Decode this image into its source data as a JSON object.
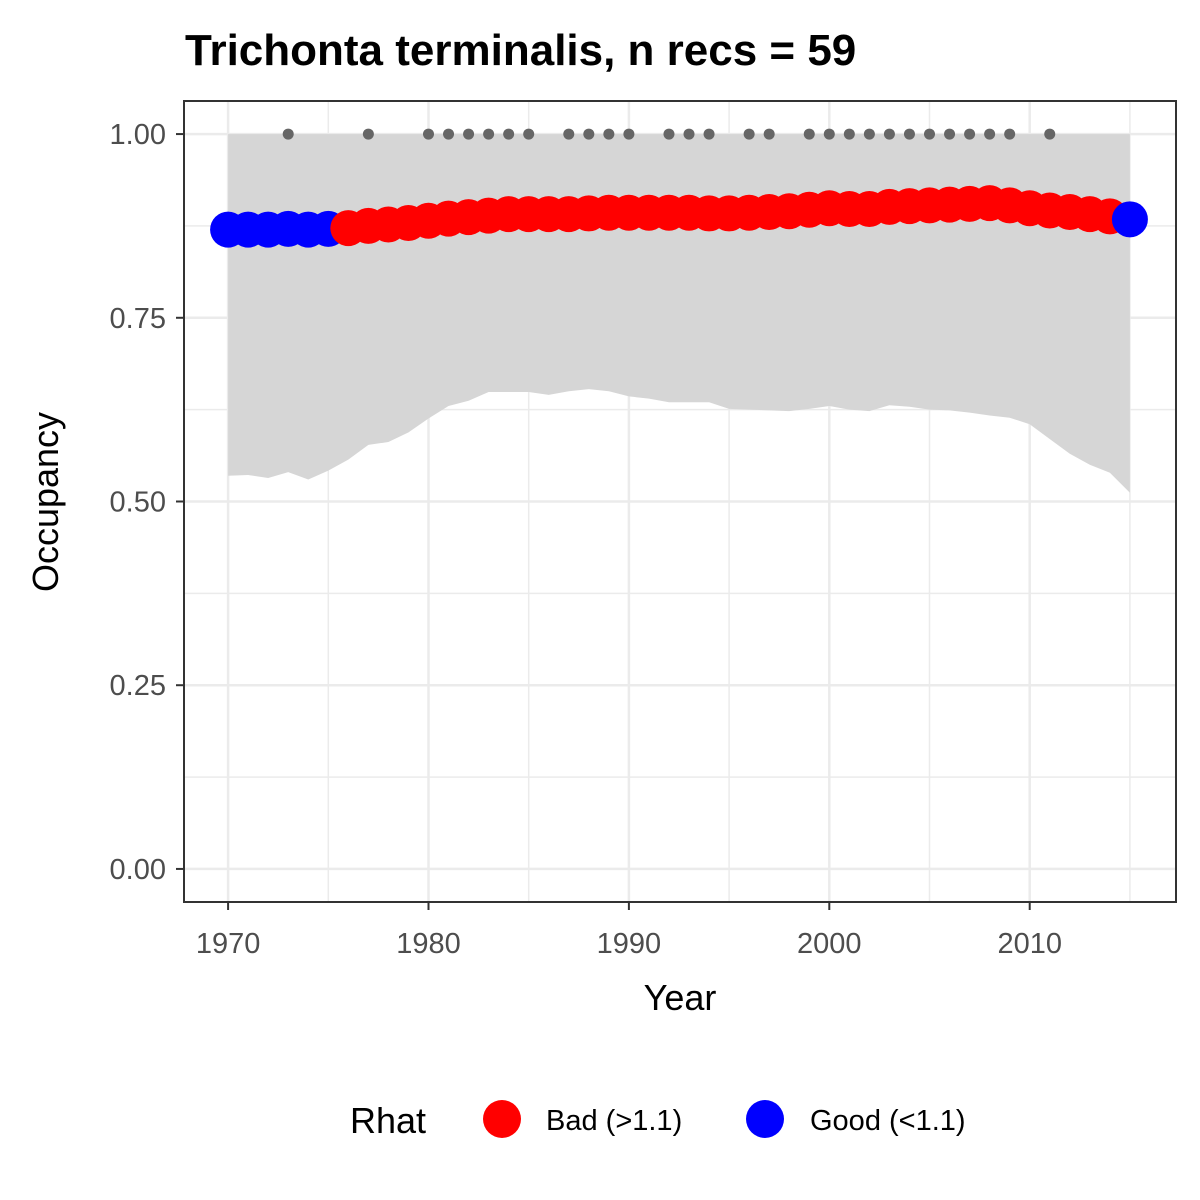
{
  "chart_data": {
    "type": "line",
    "title": "Trichonta terminalis, n recs = 59",
    "xlabel": "Year",
    "ylabel": "Occupancy",
    "xlim": [
      1967.8,
      2017.3
    ],
    "ylim": [
      -0.045,
      1.045
    ],
    "x_ticks": [
      1970,
      1980,
      1990,
      2000,
      2010
    ],
    "x_tick_labels": [
      "1970",
      "1980",
      "1990",
      "2000",
      "2010"
    ],
    "y_ticks": [
      0,
      0.25,
      0.5,
      0.75,
      1.0
    ],
    "y_tick_labels": [
      "0.00",
      "0.25",
      "0.50",
      "0.75",
      "1.00"
    ],
    "grid": true,
    "legend": {
      "title": "Rhat",
      "position": "bottom",
      "items": [
        {
          "key": "Bad",
          "label": "Bad (>1.1)",
          "color": "#ff0000"
        },
        {
          "key": "Good",
          "label": "Good (<1.1)",
          "color": "#0000ff"
        }
      ]
    },
    "series": [
      {
        "x": [
          1970,
          1971,
          1972,
          1973,
          1974,
          1975,
          1976,
          1977,
          1978,
          1979,
          1980,
          1981,
          1982,
          1983,
          1984,
          1985,
          1986,
          1987,
          1988,
          1989,
          1990,
          1991,
          1992,
          1993,
          1994,
          1995,
          1996,
          1997,
          1998,
          1999,
          2000,
          2001,
          2002,
          2003,
          2004,
          2005,
          2006,
          2007,
          2008,
          2009,
          2010,
          2011,
          2012,
          2013,
          2014,
          2015
        ],
        "y": [
          0.87,
          0.87,
          0.87,
          0.871,
          0.87,
          0.871,
          0.872,
          0.875,
          0.877,
          0.879,
          0.882,
          0.885,
          0.887,
          0.889,
          0.891,
          0.891,
          0.891,
          0.891,
          0.892,
          0.893,
          0.893,
          0.893,
          0.893,
          0.893,
          0.892,
          0.892,
          0.893,
          0.894,
          0.895,
          0.897,
          0.899,
          0.898,
          0.898,
          0.901,
          0.902,
          0.903,
          0.904,
          0.905,
          0.906,
          0.903,
          0.899,
          0.896,
          0.894,
          0.891,
          0.888,
          0.884
        ],
        "rhat": [
          "Good",
          "Good",
          "Good",
          "Good",
          "Good",
          "Good",
          "Bad",
          "Bad",
          "Bad",
          "Bad",
          "Bad",
          "Bad",
          "Bad",
          "Bad",
          "Bad",
          "Bad",
          "Bad",
          "Bad",
          "Bad",
          "Bad",
          "Bad",
          "Bad",
          "Bad",
          "Bad",
          "Bad",
          "Bad",
          "Bad",
          "Bad",
          "Bad",
          "Bad",
          "Bad",
          "Bad",
          "Bad",
          "Bad",
          "Bad",
          "Bad",
          "Bad",
          "Bad",
          "Bad",
          "Bad",
          "Bad",
          "Bad",
          "Bad",
          "Bad",
          "Bad",
          "Good"
        ],
        "lower": [
          0.535,
          0.536,
          0.532,
          0.54,
          0.53,
          0.542,
          0.557,
          0.577,
          0.581,
          0.594,
          0.613,
          0.63,
          0.637,
          0.649,
          0.649,
          0.649,
          0.645,
          0.65,
          0.653,
          0.65,
          0.643,
          0.64,
          0.635,
          0.635,
          0.635,
          0.626,
          0.625,
          0.624,
          0.623,
          0.626,
          0.63,
          0.625,
          0.623,
          0.631,
          0.629,
          0.625,
          0.624,
          0.621,
          0.617,
          0.614,
          0.605,
          0.585,
          0.565,
          0.55,
          0.539,
          0.512
        ],
        "upper": [
          1,
          1,
          1,
          1,
          1,
          1,
          1,
          1,
          1,
          1,
          1,
          1,
          1,
          1,
          1,
          1,
          1,
          1,
          1,
          1,
          1,
          1,
          1,
          1,
          1,
          1,
          1,
          1,
          1,
          1,
          1,
          1,
          1,
          1,
          1,
          1,
          1,
          1,
          1,
          1,
          1,
          1,
          1,
          1,
          1,
          1
        ]
      }
    ],
    "record_years": [
      1973,
      1977,
      1980,
      1981,
      1982,
      1983,
      1984,
      1985,
      1987,
      1988,
      1989,
      1990,
      1992,
      1993,
      1994,
      1996,
      1997,
      1999,
      2000,
      2001,
      2002,
      2003,
      2004,
      2005,
      2006,
      2007,
      2008,
      2009,
      2011
    ],
    "record_y": 1.0,
    "colors": {
      "panel_border": "#333333",
      "grid": "#ebebeb",
      "ribbon": "#d6d6d6",
      "record_points": "#666666"
    }
  }
}
